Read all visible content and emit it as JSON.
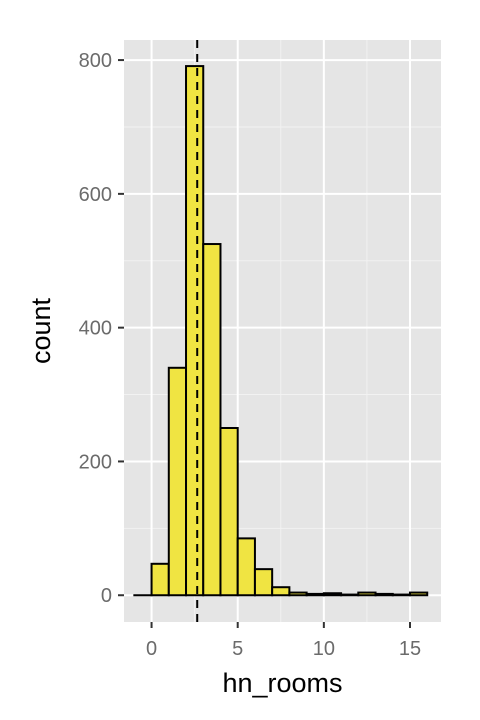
{
  "chart_data": {
    "type": "bar",
    "title": "",
    "xlabel": "hn_rooms",
    "ylabel": "count",
    "xlim": [
      -1.6,
      16.8
    ],
    "ylim": [
      -40,
      830
    ],
    "x_ticks": [
      0,
      5,
      10,
      15
    ],
    "x_tick_labels": [
      "0",
      "5",
      "10",
      "15"
    ],
    "y_ticks": [
      0,
      200,
      400,
      600,
      800
    ],
    "y_tick_labels": [
      "0",
      "200",
      "400",
      "600",
      "800"
    ],
    "bin_width": 1,
    "bins": [
      {
        "x0": -1,
        "x1": 0,
        "count": 0
      },
      {
        "x0": 0,
        "x1": 1,
        "count": 47
      },
      {
        "x0": 1,
        "x1": 2,
        "count": 340
      },
      {
        "x0": 2,
        "x1": 3,
        "count": 791
      },
      {
        "x0": 3,
        "x1": 4,
        "count": 525
      },
      {
        "x0": 4,
        "x1": 5,
        "count": 250
      },
      {
        "x0": 5,
        "x1": 6,
        "count": 85
      },
      {
        "x0": 6,
        "x1": 7,
        "count": 39
      },
      {
        "x0": 7,
        "x1": 8,
        "count": 12
      },
      {
        "x0": 8,
        "x1": 9,
        "count": 4
      },
      {
        "x0": 9,
        "x1": 10,
        "count": 2
      },
      {
        "x0": 10,
        "x1": 11,
        "count": 3
      },
      {
        "x0": 11,
        "x1": 12,
        "count": 1
      },
      {
        "x0": 12,
        "x1": 13,
        "count": 4
      },
      {
        "x0": 13,
        "x1": 14,
        "count": 2
      },
      {
        "x0": 14,
        "x1": 15,
        "count": 1
      },
      {
        "x0": 15,
        "x1": 16,
        "count": 4
      }
    ],
    "mean_line": 2.65,
    "grid": true,
    "colors": {
      "panel_background": "#e5e5e5",
      "grid_major": "#ffffff",
      "grid_minor": "#f2f2f2",
      "bar_fill": "#f0e442",
      "bar_outline": "#000000",
      "mean_line": "#000000"
    }
  }
}
